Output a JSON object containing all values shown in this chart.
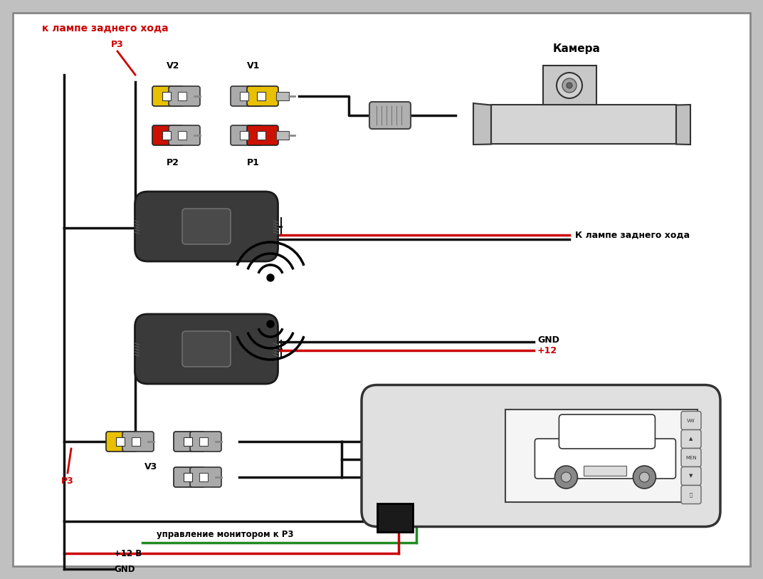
{
  "bg_color": "#ffffff",
  "labels": {
    "k_lampe_top": "к лампе заднего хода",
    "P3_top": "P3",
    "V2": "V2",
    "V1": "V1",
    "P2": "P2",
    "P1": "P1",
    "camera": "Камера",
    "k_lampe_right": "К лампе заднего хода",
    "GND": "GND",
    "plus12": "+12",
    "V3": "V3",
    "P3_bot": "P3",
    "upravlenie": "управление монитором к P3",
    "plus12V": "+12 В",
    "GND_bot": "GND"
  },
  "colors": {
    "red_label": "#cc0000",
    "black": "#000000",
    "yellow": "#e8c000",
    "red_plug": "#cc1100",
    "gray_plug": "#aaaaaa",
    "wire_black": "#111111",
    "wire_red": "#cc0000",
    "wire_green": "#228b22",
    "module_dark": "#3a3a3a",
    "module_mid": "#555555",
    "light_gray": "#bbbbbb",
    "white": "#ffffff",
    "watermark": "#b0c8e0"
  }
}
